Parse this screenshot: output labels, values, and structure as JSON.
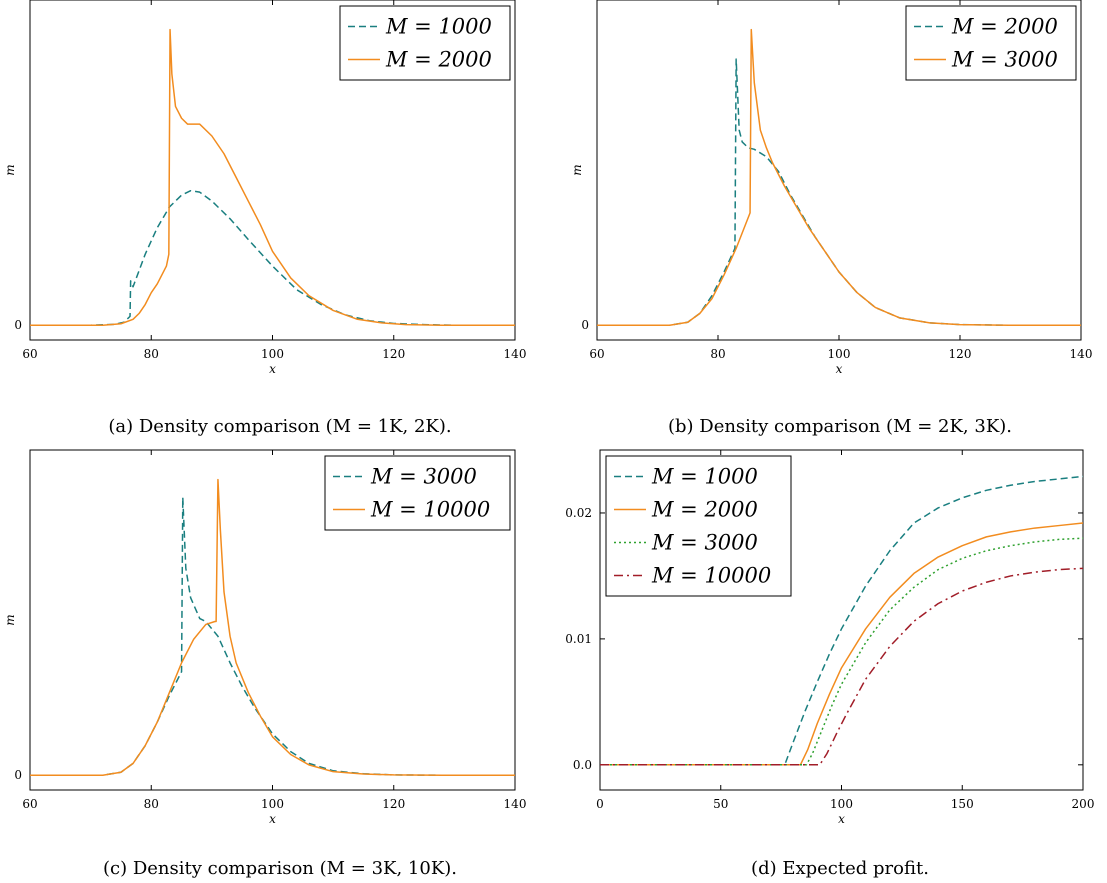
{
  "captions": {
    "a": "(a) Density comparison (M = 1K, 2K).",
    "b": "(b) Density comparison (M = 2K, 3K).",
    "c": "(c) Density comparison (M = 3K, 10K).",
    "d": "(d) Expected profit."
  },
  "colors": {
    "teal": "#1a7f80",
    "orange": "#f28c1f",
    "green": "#2fa12f",
    "darkred": "#a11d28"
  },
  "chart_data": [
    {
      "id": "a",
      "type": "line",
      "xlabel": "x",
      "ylabel": "m",
      "xlim": [
        60,
        140
      ],
      "ylim": [
        -0.05,
        1.1
      ],
      "xticks": [
        60,
        80,
        100,
        120,
        140
      ],
      "yticks": [
        {
          "value": 0,
          "label": "0"
        }
      ],
      "legend_position": "top-right",
      "series": [
        {
          "name": "M = 1000",
          "color": "#1a7f80",
          "dash": "dashed",
          "points": [
            [
              60,
              0
            ],
            [
              70,
              0
            ],
            [
              74,
              0.003
            ],
            [
              75.5,
              0.01
            ],
            [
              76.5,
              0.03
            ],
            [
              76.6,
              0.15
            ],
            [
              77,
              0.13
            ],
            [
              79,
              0.24
            ],
            [
              81,
              0.33
            ],
            [
              83,
              0.4
            ],
            [
              85,
              0.44
            ],
            [
              86.5,
              0.455
            ],
            [
              88,
              0.45
            ],
            [
              90,
              0.42
            ],
            [
              93,
              0.36
            ],
            [
              96,
              0.29
            ],
            [
              100,
              0.2
            ],
            [
              104,
              0.12
            ],
            [
              108,
              0.07
            ],
            [
              112,
              0.035
            ],
            [
              116,
              0.015
            ],
            [
              120,
              0.006
            ],
            [
              125,
              0.002
            ],
            [
              130,
              0
            ],
            [
              140,
              0
            ]
          ]
        },
        {
          "name": "M = 2000",
          "color": "#f28c1f",
          "dash": "solid",
          "points": [
            [
              60,
              0
            ],
            [
              72,
              0
            ],
            [
              75,
              0.005
            ],
            [
              77,
              0.02
            ],
            [
              78,
              0.04
            ],
            [
              79,
              0.07
            ],
            [
              80,
              0.11
            ],
            [
              81,
              0.14
            ],
            [
              82.5,
              0.2
            ],
            [
              82.9,
              0.24
            ],
            [
              83.1,
              1.0
            ],
            [
              83.4,
              0.85
            ],
            [
              84,
              0.74
            ],
            [
              85,
              0.7
            ],
            [
              86,
              0.68
            ],
            [
              88,
              0.68
            ],
            [
              90,
              0.64
            ],
            [
              92,
              0.58
            ],
            [
              94,
              0.5
            ],
            [
              96,
              0.42
            ],
            [
              98,
              0.34
            ],
            [
              100,
              0.25
            ],
            [
              103,
              0.16
            ],
            [
              106,
              0.1
            ],
            [
              110,
              0.05
            ],
            [
              114,
              0.02
            ],
            [
              118,
              0.008
            ],
            [
              122,
              0.002
            ],
            [
              128,
              0
            ],
            [
              140,
              0
            ]
          ]
        }
      ]
    },
    {
      "id": "b",
      "type": "line",
      "xlabel": "x",
      "ylabel": "m",
      "xlim": [
        60,
        140
      ],
      "ylim": [
        -0.05,
        1.1
      ],
      "xticks": [
        60,
        80,
        100,
        120,
        140
      ],
      "yticks": [
        {
          "value": 0,
          "label": "0"
        }
      ],
      "legend_position": "top-right",
      "series": [
        {
          "name": "M = 2000",
          "color": "#1a7f80",
          "dash": "dashed",
          "points": [
            [
              60,
              0
            ],
            [
              72,
              0
            ],
            [
              75,
              0.01
            ],
            [
              77,
              0.04
            ],
            [
              79,
              0.1
            ],
            [
              81,
              0.18
            ],
            [
              82.8,
              0.26
            ],
            [
              83,
              0.9
            ],
            [
              83.5,
              0.66
            ],
            [
              84,
              0.62
            ],
            [
              85,
              0.6
            ],
            [
              86,
              0.595
            ],
            [
              88,
              0.57
            ],
            [
              90,
              0.52
            ],
            [
              92,
              0.44
            ],
            [
              94,
              0.37
            ],
            [
              96,
              0.3
            ],
            [
              98,
              0.24
            ],
            [
              100,
              0.18
            ],
            [
              103,
              0.11
            ],
            [
              106,
              0.06
            ],
            [
              110,
              0.025
            ],
            [
              115,
              0.008
            ],
            [
              120,
              0.002
            ],
            [
              128,
              0
            ],
            [
              140,
              0
            ]
          ]
        },
        {
          "name": "M = 3000",
          "color": "#f28c1f",
          "dash": "solid",
          "points": [
            [
              60,
              0
            ],
            [
              72,
              0
            ],
            [
              75,
              0.01
            ],
            [
              77,
              0.04
            ],
            [
              79,
              0.09
            ],
            [
              81,
              0.17
            ],
            [
              83,
              0.26
            ],
            [
              85.3,
              0.38
            ],
            [
              85.5,
              1.0
            ],
            [
              86,
              0.82
            ],
            [
              87,
              0.66
            ],
            [
              88,
              0.6
            ],
            [
              89,
              0.55
            ],
            [
              91,
              0.47
            ],
            [
              93,
              0.4
            ],
            [
              95,
              0.33
            ],
            [
              97,
              0.27
            ],
            [
              100,
              0.18
            ],
            [
              103,
              0.11
            ],
            [
              106,
              0.06
            ],
            [
              110,
              0.025
            ],
            [
              115,
              0.008
            ],
            [
              120,
              0.002
            ],
            [
              128,
              0
            ],
            [
              140,
              0
            ]
          ]
        }
      ]
    },
    {
      "id": "c",
      "type": "line",
      "xlabel": "x",
      "ylabel": "m",
      "xlim": [
        60,
        140
      ],
      "ylim": [
        -0.05,
        1.1
      ],
      "xticks": [
        60,
        80,
        100,
        120,
        140
      ],
      "yticks": [
        {
          "value": 0,
          "label": "0"
        }
      ],
      "legend_position": "top-right",
      "series": [
        {
          "name": "M = 3000",
          "color": "#1a7f80",
          "dash": "dashed",
          "points": [
            [
              60,
              0
            ],
            [
              72,
              0
            ],
            [
              75,
              0.01
            ],
            [
              77,
              0.04
            ],
            [
              79,
              0.1
            ],
            [
              81,
              0.18
            ],
            [
              83,
              0.27
            ],
            [
              85,
              0.35
            ],
            [
              85.2,
              0.94
            ],
            [
              85.7,
              0.7
            ],
            [
              86.5,
              0.6
            ],
            [
              88,
              0.53
            ],
            [
              89,
              0.52
            ],
            [
              91,
              0.47
            ],
            [
              93,
              0.38
            ],
            [
              95,
              0.3
            ],
            [
              97,
              0.23
            ],
            [
              100,
              0.14
            ],
            [
              103,
              0.08
            ],
            [
              106,
              0.04
            ],
            [
              110,
              0.015
            ],
            [
              115,
              0.005
            ],
            [
              120,
              0.001
            ],
            [
              128,
              0
            ],
            [
              140,
              0
            ]
          ]
        },
        {
          "name": "M = 10000",
          "color": "#f28c1f",
          "dash": "solid",
          "points": [
            [
              60,
              0
            ],
            [
              72,
              0
            ],
            [
              75,
              0.01
            ],
            [
              77,
              0.04
            ],
            [
              79,
              0.1
            ],
            [
              81,
              0.18
            ],
            [
              83,
              0.28
            ],
            [
              85,
              0.38
            ],
            [
              87,
              0.46
            ],
            [
              89,
              0.51
            ],
            [
              90.5,
              0.52
            ],
            [
              90.7,
              0.52
            ],
            [
              91,
              1.0
            ],
            [
              91.4,
              0.83
            ],
            [
              92,
              0.62
            ],
            [
              93,
              0.47
            ],
            [
              94,
              0.38
            ],
            [
              96,
              0.28
            ],
            [
              98,
              0.2
            ],
            [
              100,
              0.13
            ],
            [
              103,
              0.07
            ],
            [
              106,
              0.035
            ],
            [
              110,
              0.012
            ],
            [
              115,
              0.004
            ],
            [
              120,
              0.001
            ],
            [
              128,
              0
            ],
            [
              140,
              0
            ]
          ]
        }
      ]
    },
    {
      "id": "d",
      "type": "line",
      "xlabel": "x",
      "ylabel": "",
      "xlim": [
        0,
        200
      ],
      "ylim": [
        -0.002,
        0.025
      ],
      "xticks": [
        0,
        50,
        100,
        150,
        200
      ],
      "yticks": [
        {
          "value": 0,
          "label": "0.0"
        },
        {
          "value": 0.01,
          "label": "0.01"
        },
        {
          "value": 0.02,
          "label": "0.02"
        }
      ],
      "legend_position": "top-left",
      "series": [
        {
          "name": "M = 1000",
          "color": "#1a7f80",
          "dash": "dashed",
          "points": [
            [
              0,
              0
            ],
            [
              76.5,
              0
            ],
            [
              80,
              0.0018
            ],
            [
              85,
              0.0043
            ],
            [
              90,
              0.0066
            ],
            [
              95,
              0.0088
            ],
            [
              100,
              0.0108
            ],
            [
              110,
              0.0142
            ],
            [
              120,
              0.017
            ],
            [
              130,
              0.0192
            ],
            [
              140,
              0.0204
            ],
            [
              150,
              0.0212
            ],
            [
              160,
              0.0218
            ],
            [
              170,
              0.0222
            ],
            [
              180,
              0.0225
            ],
            [
              190,
              0.0227
            ],
            [
              200,
              0.0229
            ]
          ]
        },
        {
          "name": "M = 2000",
          "color": "#f28c1f",
          "dash": "solid",
          "points": [
            [
              0,
              0
            ],
            [
              83,
              0
            ],
            [
              86,
              0.0012
            ],
            [
              90,
              0.0033
            ],
            [
              95,
              0.0056
            ],
            [
              100,
              0.0077
            ],
            [
              110,
              0.0108
            ],
            [
              120,
              0.0133
            ],
            [
              130,
              0.0152
            ],
            [
              140,
              0.0165
            ],
            [
              150,
              0.0174
            ],
            [
              160,
              0.0181
            ],
            [
              170,
              0.0185
            ],
            [
              180,
              0.0188
            ],
            [
              190,
              0.019
            ],
            [
              200,
              0.0192
            ]
          ]
        },
        {
          "name": "M = 3000",
          "color": "#2fa12f",
          "dash": "dotted",
          "points": [
            [
              0,
              0
            ],
            [
              85.5,
              0
            ],
            [
              88,
              0.0009
            ],
            [
              92,
              0.0028
            ],
            [
              96,
              0.0047
            ],
            [
              100,
              0.0064
            ],
            [
              110,
              0.0097
            ],
            [
              120,
              0.0123
            ],
            [
              130,
              0.0141
            ],
            [
              140,
              0.0155
            ],
            [
              150,
              0.0164
            ],
            [
              160,
              0.017
            ],
            [
              170,
              0.0174
            ],
            [
              180,
              0.0177
            ],
            [
              190,
              0.0179
            ],
            [
              200,
              0.018
            ]
          ]
        },
        {
          "name": "M = 10000",
          "color": "#a11d28",
          "dash": "dashdot",
          "points": [
            [
              0,
              0
            ],
            [
              91,
              0
            ],
            [
              94,
              0.0009
            ],
            [
              98,
              0.0025
            ],
            [
              102,
              0.004
            ],
            [
              110,
              0.0068
            ],
            [
              120,
              0.0094
            ],
            [
              130,
              0.0114
            ],
            [
              140,
              0.0128
            ],
            [
              150,
              0.0138
            ],
            [
              160,
              0.0145
            ],
            [
              170,
              0.015
            ],
            [
              180,
              0.0153
            ],
            [
              190,
              0.0155
            ],
            [
              200,
              0.0156
            ]
          ]
        }
      ]
    }
  ]
}
